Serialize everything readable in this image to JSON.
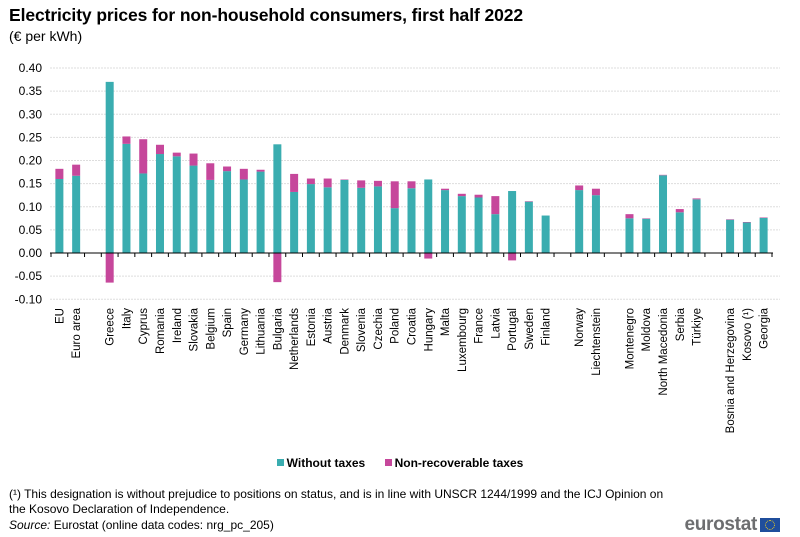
{
  "title": "Electricity prices for non-household consumers, first half 2022",
  "subtitle": "(€ per kWh)",
  "colors": {
    "without_taxes": "#3aadb0",
    "non_recoverable_taxes": "#c6479b",
    "grid": "#dddddd",
    "axis": "#000000"
  },
  "chart_data": {
    "type": "bar",
    "stacked": true,
    "title": "Electricity prices for non-household consumers, first half 2022",
    "subtitle": "(€ per kWh)",
    "xlabel": "",
    "ylabel": "",
    "ylim": [
      -0.1,
      0.4
    ],
    "yticks": [
      0.4,
      0.35,
      0.3,
      0.25,
      0.2,
      0.15,
      0.1,
      0.05,
      0.0,
      -0.05,
      -0.1
    ],
    "ytick_labels": [
      "0.40",
      "0.35",
      "0.30",
      "0.25",
      "0.20",
      "0.15",
      "0.10",
      "0.05",
      "0.00",
      "-0.05",
      "-0.10"
    ],
    "grid": true,
    "legend_position": "bottom-center",
    "categories": [
      "EU",
      "Euro area",
      "",
      "Greece",
      "Italy",
      "Cyprus",
      "Romania",
      "Ireland",
      "Slovakia",
      "Belgium",
      "Spain",
      "Germany",
      "Lithuania",
      "Bulgaria",
      "Netherlands",
      "Estonia",
      "Austria",
      "Denmark",
      "Slovenia",
      "Czechia",
      "Poland",
      "Croatia",
      "Hungary",
      "Malta",
      "Luxembourg",
      "France",
      "Latvia",
      "Portugal",
      "Sweden",
      "Finland",
      "",
      "Norway",
      "Liechtenstein",
      "",
      "Montenegro",
      "Moldova",
      "North Macedonia",
      "Serbia",
      "Türkiye",
      "",
      "Bosnia and Herzegovina",
      "Kosovo (¹)",
      "Georgia"
    ],
    "series": [
      {
        "name": "Without taxes",
        "values": [
          0.16,
          0.167,
          null,
          0.37,
          0.236,
          0.172,
          0.214,
          0.209,
          0.189,
          0.158,
          0.177,
          0.159,
          0.176,
          0.235,
          0.132,
          0.149,
          0.142,
          0.158,
          0.141,
          0.144,
          0.097,
          0.14,
          0.159,
          0.136,
          0.123,
          0.12,
          0.084,
          0.134,
          0.111,
          0.081,
          null,
          0.136,
          0.125,
          null,
          0.075,
          0.074,
          0.168,
          0.088,
          0.116,
          null,
          0.072,
          0.066,
          0.076
        ]
      },
      {
        "name": "Non-recoverable taxes",
        "values": [
          0.022,
          0.024,
          null,
          -0.064,
          0.016,
          0.074,
          0.02,
          0.008,
          0.026,
          0.036,
          0.01,
          0.023,
          0.004,
          -0.063,
          0.039,
          0.012,
          0.019,
          0.001,
          0.016,
          0.012,
          0.058,
          0.015,
          -0.012,
          0.003,
          0.005,
          0.006,
          0.039,
          -0.016,
          0.001,
          0.0,
          null,
          0.01,
          0.014,
          null,
          0.009,
          0.001,
          0.001,
          0.007,
          0.002,
          null,
          0.001,
          0.001,
          0.001
        ]
      }
    ]
  },
  "legend": {
    "items": [
      {
        "label": "Without taxes",
        "color": "#3aadb0"
      },
      {
        "label": "Non-recoverable taxes",
        "color": "#c6479b"
      }
    ]
  },
  "footnote": "(¹) This designation is without prejudice to positions on status, and is in line with UNSCR 1244/1999 and the ICJ Opinion on the Kosovo Declaration of Independence.",
  "source": {
    "label": "Source:",
    "text": " Eurostat (online data codes: nrg_pc_205)"
  },
  "logo": {
    "text": "eurostat",
    "flag_icon": "eu-flag-icon"
  }
}
